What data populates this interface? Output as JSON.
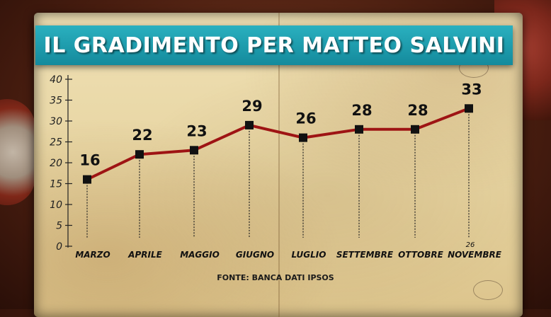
{
  "title": "IL GRADIMENTO PER MATTEO SALVINI",
  "source": "FONTE: BANCA DATI IPSOS",
  "colors": {
    "title_bg": "#1a9cad",
    "line": "#9e1414",
    "marker": "#111111"
  },
  "chart_data": {
    "type": "line",
    "categories": [
      "MARZO",
      "APRILE",
      "MAGGIO",
      "GIUGNO",
      "LUGLIO",
      "SETTEMBRE",
      "OTTOBRE",
      "NOVEMBRE"
    ],
    "category_notes": {
      "NOVEMBRE": "26"
    },
    "values": [
      16,
      22,
      23,
      29,
      26,
      28,
      28,
      33
    ],
    "ylim": [
      0,
      40
    ],
    "yticks": [
      0,
      5,
      10,
      15,
      20,
      25,
      30,
      35,
      40
    ],
    "xlabel": "",
    "ylabel": "",
    "grid": false,
    "legend": "none"
  }
}
